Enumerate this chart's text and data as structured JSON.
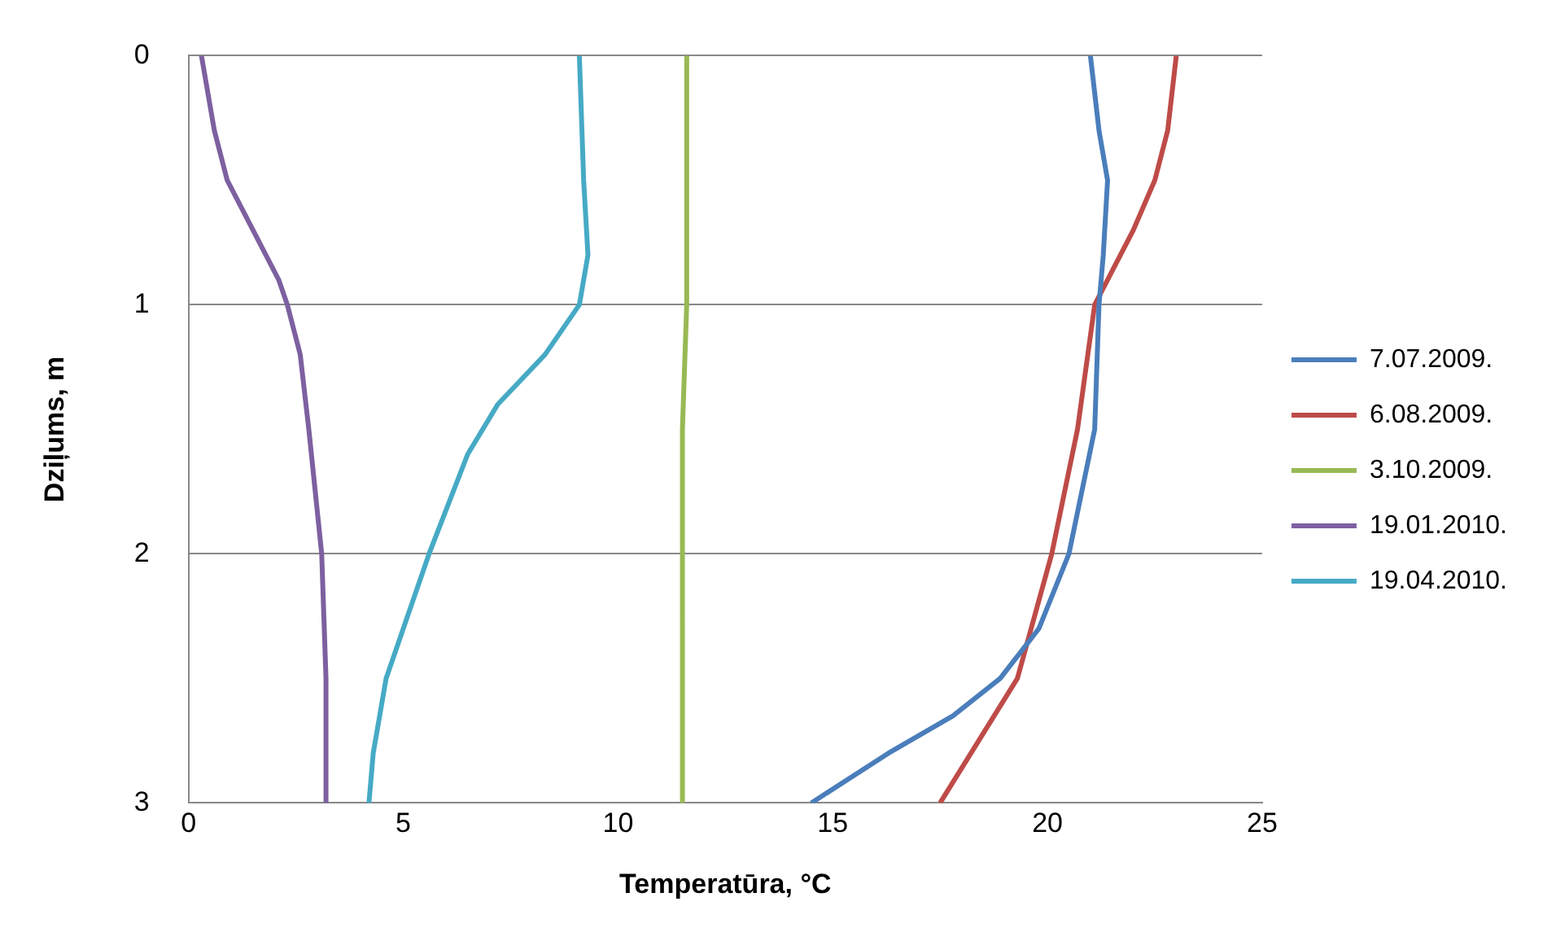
{
  "chart_data": {
    "type": "line",
    "xlabel": "Temperatūra, °C",
    "ylabel": "Dziļums, m",
    "xlim": [
      0,
      25
    ],
    "xticks": [
      0,
      5,
      10,
      15,
      20,
      25
    ],
    "ylim": [
      3,
      0
    ],
    "yticks": [
      0,
      1,
      2,
      3
    ],
    "grid": "y",
    "legend": "right",
    "marker": "none",
    "line_style": "solid",
    "series": [
      {
        "name": "7.07.2009.",
        "color": "#4a7ebb",
        "x": [
          21.0,
          21.2,
          21.4,
          21.3,
          21.2,
          21.1,
          20.5,
          19.8,
          18.9,
          17.8,
          16.3,
          14.5
        ],
        "values": [
          0,
          0.3,
          0.5,
          0.8,
          1,
          1.5,
          2,
          2.3,
          2.5,
          2.65,
          2.8,
          3
        ]
      },
      {
        "name": "6.08.2009.",
        "color": "#be4b48",
        "x": [
          23.0,
          22.8,
          22.5,
          22.0,
          21.1,
          20.7,
          20.1,
          19.3,
          17.5
        ],
        "values": [
          0,
          0.3,
          0.5,
          0.7,
          1,
          1.5,
          2,
          2.5,
          3
        ]
      },
      {
        "name": "3.10.2009.",
        "color": "#98b954",
        "x": [
          11.6,
          11.6,
          11.5,
          11.5
        ],
        "values": [
          0,
          1,
          1.5,
          3
        ]
      },
      {
        "name": "19.01.2010.",
        "color": "#7d60a0",
        "x": [
          0.3,
          0.6,
          0.9,
          1.5,
          2.1,
          2.3,
          2.6,
          2.8,
          3.1,
          3.2,
          3.2
        ],
        "values": [
          0,
          0.3,
          0.5,
          0.7,
          0.9,
          1,
          1.2,
          1.5,
          2,
          2.5,
          3
        ]
      },
      {
        "name": "19.04.2010.",
        "color": "#46aac5",
        "x": [
          9.1,
          9.2,
          9.3,
          9.1,
          8.3,
          7.2,
          6.5,
          5.6,
          4.6,
          4.3,
          4.2
        ],
        "values": [
          0,
          0.5,
          0.8,
          1,
          1.2,
          1.4,
          1.6,
          2,
          2.5,
          2.8,
          3
        ]
      }
    ]
  }
}
